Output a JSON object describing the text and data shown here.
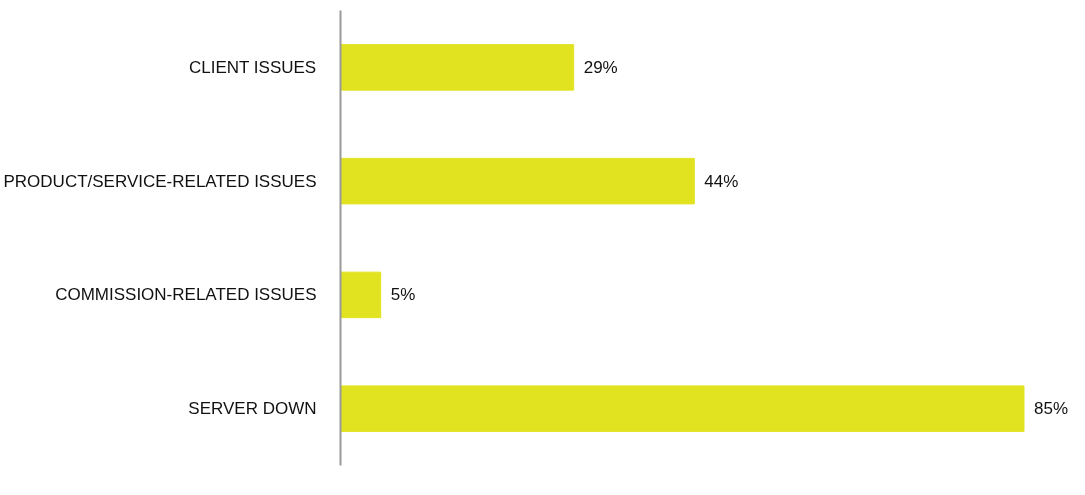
{
  "chart_data": {
    "type": "bar",
    "orientation": "horizontal",
    "categories": [
      "CLIENT ISSUES",
      "PRODUCT/SERVICE-RELATED ISSUES",
      "COMMISSION-RELATED ISSUES",
      "SERVER DOWN"
    ],
    "values": [
      29,
      44,
      5,
      85
    ],
    "value_labels": [
      "29%",
      "44%",
      "5%",
      "85%"
    ],
    "color": "#e1e320",
    "grid": false,
    "tick_labels": "y"
  }
}
